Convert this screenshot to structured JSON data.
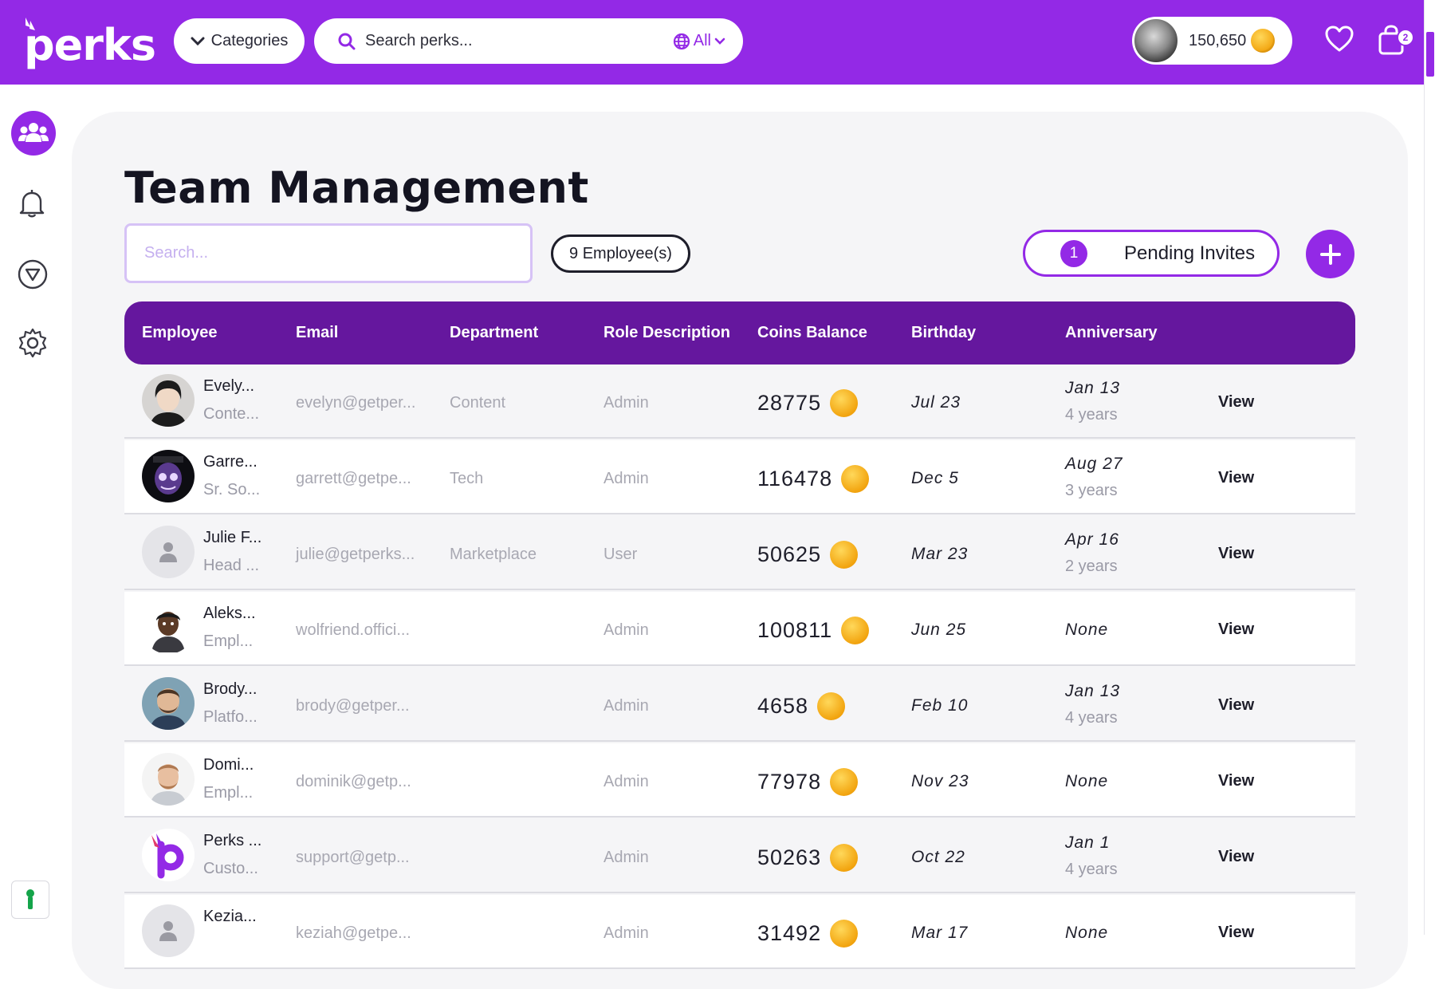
{
  "brand": {
    "logo_text": "perks"
  },
  "topbar": {
    "categories_label": "Categories",
    "search_placeholder": "Search perks...",
    "scope_label": "All",
    "coin_balance": "150,650",
    "cart_count": "2"
  },
  "page": {
    "title": "Team Management",
    "search_placeholder": "Search...",
    "employee_count": "9 Employee(s)",
    "pending_count": "1",
    "pending_label": "Pending Invites"
  },
  "table": {
    "headers": [
      "Employee",
      "Email",
      "Department",
      "Role Description",
      "Coins Balance",
      "Birthday",
      "Anniversary"
    ],
    "rows": [
      {
        "name": "Evely...",
        "title": "Conte...",
        "email": "evelyn@getper...",
        "department": "Content",
        "role": "Admin",
        "coins": "28775",
        "birthday": "Jul 23",
        "anniversary": "Jan 13",
        "tenure": "4 years",
        "view": "View"
      },
      {
        "name": "Garre...",
        "title": "Sr. So...",
        "email": "garrett@getpe...",
        "department": "Tech",
        "role": "Admin",
        "coins": "116478",
        "birthday": "Dec 5",
        "anniversary": "Aug 27",
        "tenure": "3 years",
        "view": "View"
      },
      {
        "name": "Julie F...",
        "title": "Head ...",
        "email": "julie@getperks...",
        "department": "Marketplace",
        "role": "User",
        "coins": "50625",
        "birthday": "Mar 23",
        "anniversary": "Apr 16",
        "tenure": "2 years",
        "view": "View"
      },
      {
        "name": "Aleks...",
        "title": "Empl...",
        "email": "wolfriend.offici...",
        "department": "",
        "role": "Admin",
        "coins": "100811",
        "birthday": "Jun 25",
        "anniversary": "None",
        "tenure": "",
        "view": "View"
      },
      {
        "name": "Brody...",
        "title": "Platfo...",
        "email": "brody@getper...",
        "department": "",
        "role": "Admin",
        "coins": "4658",
        "birthday": "Feb 10",
        "anniversary": "Jan 13",
        "tenure": "4 years",
        "view": "View"
      },
      {
        "name": "Domi...",
        "title": "Empl...",
        "email": "dominik@getp...",
        "department": "",
        "role": "Admin",
        "coins": "77978",
        "birthday": "Nov 23",
        "anniversary": "None",
        "tenure": "",
        "view": "View"
      },
      {
        "name": "Perks ...",
        "title": "Custo...",
        "email": "support@getp...",
        "department": "",
        "role": "Admin",
        "coins": "50263",
        "birthday": "Oct 22",
        "anniversary": "Jan 1",
        "tenure": "4 years",
        "view": "View"
      },
      {
        "name": "Kezia...",
        "title": "",
        "email": "keziah@getpe...",
        "department": "",
        "role": "Admin",
        "coins": "31492",
        "birthday": "Mar 17",
        "anniversary": "None",
        "tenure": "",
        "view": "View"
      }
    ]
  },
  "colors": {
    "brand_purple": "#9329e6",
    "header_purple": "#65179e",
    "coin_gold": "#f2a40f"
  },
  "icons": [
    "categories-chevron-icon",
    "search-icon",
    "globe-icon",
    "chevron-down-icon",
    "coin-icon",
    "heart-icon",
    "cart-icon",
    "team-icon",
    "bell-icon",
    "filter-icon",
    "gear-icon",
    "help-icon",
    "plus-icon"
  ]
}
